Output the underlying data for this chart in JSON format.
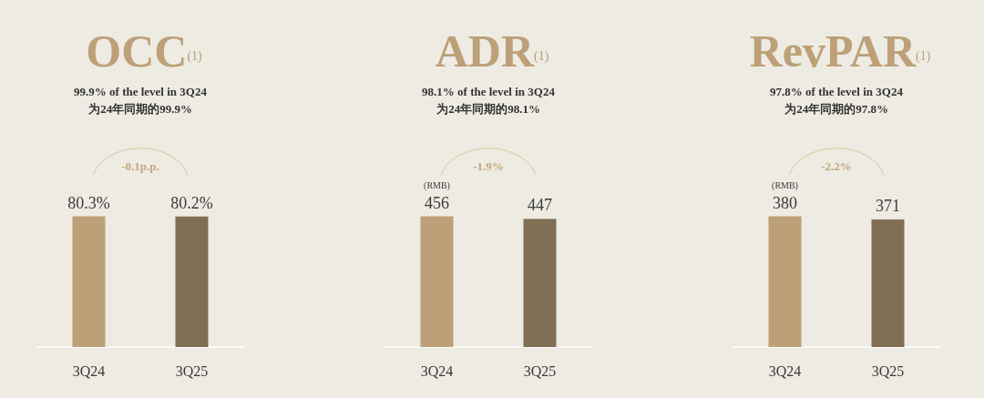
{
  "chart_data": [
    {
      "type": "bar",
      "title": "OCC$^{(1)}$",
      "subtitle": "99.9% of the level in 3Q24\n为24年同期的99.9%",
      "categories": [
        "3Q24",
        "3Q25"
      ],
      "values": [
        80.3,
        80.2
      ],
      "colors": [
        "#bda078",
        "#806f55"
      ],
      "value_labels": [
        "80.3%",
        "80.2%"
      ],
      "annotations": [
        "-0.1p.p."
      ]
    },
    {
      "type": "bar",
      "title": "ADR$^{(1)}$",
      "subtitle": "98.1% of the level in 3Q24\n为24年同期的98.1%",
      "categories": [
        "3Q24",
        "3Q25"
      ],
      "values": [
        456,
        447
      ],
      "colors": [
        "#bda078",
        "#806f55"
      ],
      "value_labels": [
        "456",
        "447"
      ],
      "annotations": [
        "-1.9%",
        "(RMB)"
      ]
    },
    {
      "type": "bar",
      "title": "RevPAR$^{(1)}$",
      "subtitle": "97.8% of the level in 3Q24\n为24年同期的97.8%",
      "categories": [
        "3Q24",
        "3Q25"
      ],
      "values": [
        380,
        371
      ],
      "colors": [
        "#bda078",
        "#806f55"
      ],
      "value_labels": [
        "380",
        "371"
      ],
      "annotations": [
        "-2.2%",
        "(RMB)"
      ]
    }
  ]
}
